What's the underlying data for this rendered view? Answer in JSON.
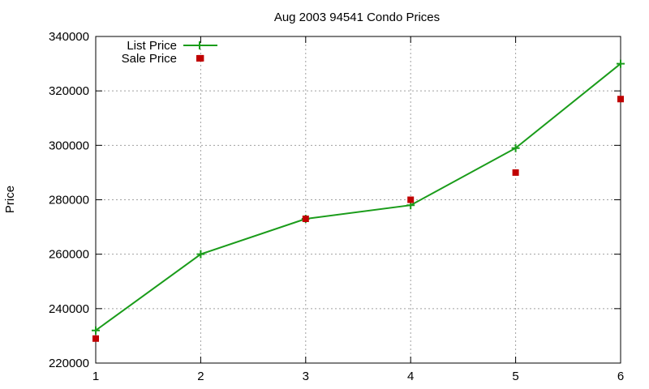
{
  "chart_data": {
    "type": "line",
    "title": "Aug 2003 94541 Condo Prices",
    "xlabel": "",
    "ylabel": "Price",
    "x": [
      1,
      2,
      3,
      4,
      5,
      6
    ],
    "xlim": [
      1,
      6
    ],
    "ylim": [
      220000,
      340000
    ],
    "x_ticks": [
      1,
      2,
      3,
      4,
      5,
      6
    ],
    "y_ticks": [
      220000,
      240000,
      260000,
      280000,
      300000,
      320000,
      340000
    ],
    "grid": true,
    "legend_position": "top-left",
    "series": [
      {
        "name": "List Price",
        "style": "line-with-plus-markers",
        "color": "#1a9c1a",
        "values": [
          232000,
          260000,
          273000,
          278000,
          299000,
          330000
        ]
      },
      {
        "name": "Sale Price",
        "style": "square-markers",
        "color": "#c00000",
        "values": [
          229000,
          332000,
          273000,
          280000,
          290000,
          317000
        ]
      }
    ]
  }
}
